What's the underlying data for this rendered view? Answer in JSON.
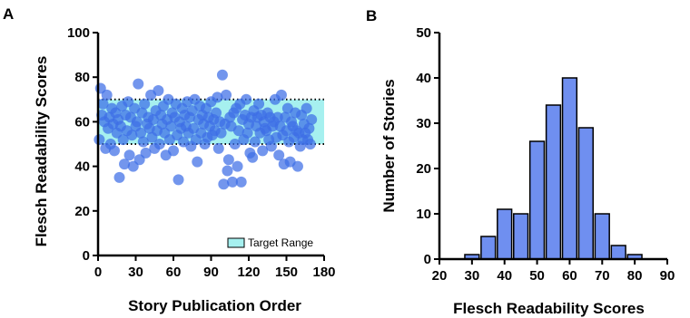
{
  "colors": {
    "point_fill": "#3d6ee6",
    "bar_fill": "#6f8ff0",
    "band_fill": "#a6f0ef",
    "axis": "#000000"
  },
  "chart_data": [
    {
      "panel": "A",
      "type": "scatter",
      "title": "",
      "xlabel": "Story Publication Order",
      "ylabel": "Flesch Readability Scores",
      "xlim": [
        0,
        180
      ],
      "ylim": [
        0,
        100
      ],
      "xticks": [
        0,
        30,
        60,
        90,
        120,
        150,
        180
      ],
      "yticks": [
        0,
        20,
        40,
        60,
        80,
        100
      ],
      "grid": false,
      "legend": {
        "position": "bottom-right",
        "entries": [
          "Target Range"
        ]
      },
      "band": {
        "name": "Target Range",
        "y0": 50,
        "y1": 70,
        "style": "dotted-bounds"
      },
      "series": [
        {
          "x": [
            1,
            2,
            3,
            4,
            5,
            6,
            7,
            8,
            9,
            10,
            11,
            12,
            13,
            14,
            15,
            16,
            17,
            18,
            19,
            20,
            21,
            22,
            23,
            24,
            25,
            26,
            27,
            28,
            29,
            30,
            31,
            32,
            33,
            34,
            35,
            36,
            37,
            38,
            39,
            40,
            41,
            42,
            43,
            44,
            45,
            46,
            47,
            48,
            49,
            50,
            51,
            52,
            53,
            54,
            55,
            56,
            57,
            58,
            59,
            60,
            61,
            62,
            63,
            64,
            65,
            66,
            67,
            68,
            69,
            70,
            71,
            72,
            73,
            74,
            75,
            76,
            77,
            78,
            79,
            80,
            81,
            82,
            83,
            84,
            85,
            86,
            87,
            88,
            89,
            90,
            91,
            92,
            93,
            94,
            95,
            96,
            97,
            98,
            99,
            100,
            101,
            102,
            103,
            104,
            105,
            106,
            107,
            108,
            109,
            110,
            111,
            112,
            113,
            114,
            115,
            116,
            117,
            118,
            119,
            120,
            121,
            122,
            123,
            124,
            125,
            126,
            127,
            128,
            129,
            130,
            131,
            132,
            133,
            134,
            135,
            136,
            137,
            138,
            139,
            140,
            141,
            142,
            143,
            144,
            145,
            146,
            147,
            148,
            149,
            150,
            151,
            152,
            153,
            154,
            155,
            156,
            157,
            158,
            159,
            160,
            161,
            162,
            163,
            164,
            165,
            166,
            167,
            168,
            169,
            170
          ],
          "y": [
            52,
            75,
            63,
            68,
            60,
            48,
            72,
            57,
            62,
            50,
            66,
            59,
            47,
            64,
            55,
            61,
            35,
            58,
            67,
            52,
            41,
            63,
            56,
            69,
            45,
            62,
            54,
            40,
            66,
            58,
            60,
            77,
            43,
            55,
            64,
            51,
            68,
            46,
            59,
            62,
            57,
            72,
            53,
            61,
            48,
            65,
            56,
            74,
            50,
            63,
            59,
            67,
            55,
            45,
            61,
            70,
            52,
            58,
            64,
            47,
            62,
            68,
            54,
            34,
            60,
            57,
            66,
            51,
            63,
            58,
            69,
            55,
            62,
            49,
            65,
            57,
            70,
            52,
            42,
            61,
            67,
            55,
            63,
            59,
            50,
            66,
            53,
            62,
            58,
            69,
            54,
            61,
            56,
            64,
            71,
            48,
            60,
            55,
            81,
            32,
            59,
            72,
            38,
            43,
            62,
            58,
            33,
            64,
            50,
            66,
            40,
            56,
            68,
            33,
            61,
            52,
            63,
            70,
            55,
            59,
            46,
            62,
            44,
            65,
            51,
            58,
            62,
            68,
            55,
            63,
            47,
            60,
            57,
            56,
            64,
            52,
            62,
            49,
            58,
            60,
            70,
            53,
            62,
            45,
            58,
            72,
            54,
            41,
            62,
            56,
            66,
            51,
            42,
            60,
            58,
            53,
            64,
            56,
            40,
            55,
            49,
            63,
            52,
            59,
            55,
            66,
            52,
            57,
            50,
            61
          ]
        }
      ]
    },
    {
      "panel": "B",
      "type": "bar",
      "title": "",
      "xlabel": "Flesch Readability Scores",
      "ylabel": "Number of Stories",
      "xlim": [
        20,
        90
      ],
      "ylim": [
        0,
        50
      ],
      "xticks": [
        20,
        30,
        40,
        50,
        60,
        70,
        80,
        90
      ],
      "yticks": [
        0,
        10,
        20,
        30,
        40,
        50
      ],
      "grid": false,
      "categories": [
        30,
        35,
        40,
        45,
        50,
        55,
        60,
        65,
        70,
        75,
        80
      ],
      "values": [
        1,
        5,
        11,
        10,
        26,
        34,
        40,
        29,
        10,
        3,
        1
      ]
    }
  ]
}
